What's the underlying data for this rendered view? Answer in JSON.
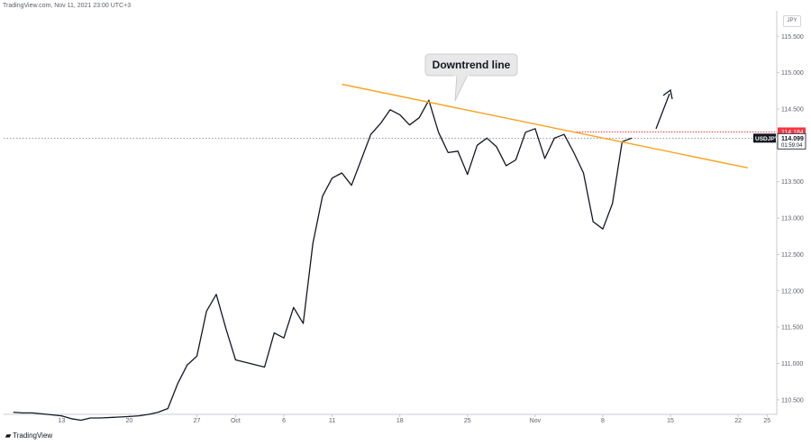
{
  "header": {
    "source": "TradingView.com, Nov 11, 2021 23:00 UTC+3"
  },
  "currency_label": "JPY",
  "logo_text": "TradingView",
  "chart_data": {
    "type": "line",
    "symbol": "USDJPY",
    "y_ticks": [
      "115.500",
      "115.000",
      "114.500",
      "114.000",
      "113.500",
      "113.000",
      "112.500",
      "112.000",
      "111.500",
      "111.000",
      "110.500"
    ],
    "ylim": [
      110.3,
      115.85
    ],
    "x_ticks": [
      {
        "label": "13",
        "date": "2021-09-13"
      },
      {
        "label": "20",
        "date": "2021-09-20"
      },
      {
        "label": "27",
        "date": "2021-09-27"
      },
      {
        "label": "Oct",
        "date": "2021-10-01"
      },
      {
        "label": "6",
        "date": "2021-10-06"
      },
      {
        "label": "11",
        "date": "2021-10-11"
      },
      {
        "label": "18",
        "date": "2021-10-18"
      },
      {
        "label": "25",
        "date": "2021-10-25"
      },
      {
        "label": "Nov",
        "date": "2021-11-01"
      },
      {
        "label": "8",
        "date": "2021-11-08"
      },
      {
        "label": "15",
        "date": "2021-11-15"
      },
      {
        "label": "22",
        "date": "2021-11-22"
      },
      {
        "label": "25",
        "date": "2021-11-25"
      }
    ],
    "xlim": [
      "2021-09-07",
      "2021-11-26"
    ],
    "series": [
      {
        "color": "#131722",
        "x": [
          "2021-09-08",
          "2021-09-09",
          "2021-09-10",
          "2021-09-13",
          "2021-09-14",
          "2021-09-15",
          "2021-09-16",
          "2021-09-17",
          "2021-09-20",
          "2021-09-21",
          "2021-09-22",
          "2021-09-23",
          "2021-09-24",
          "2021-09-25",
          "2021-09-26",
          "2021-09-27",
          "2021-09-28",
          "2021-09-29",
          "2021-09-30",
          "2021-10-01",
          "2021-10-04",
          "2021-10-05",
          "2021-10-06",
          "2021-10-07",
          "2021-10-08",
          "2021-10-09",
          "2021-10-10",
          "2021-10-11",
          "2021-10-12",
          "2021-10-13",
          "2021-10-14",
          "2021-10-15",
          "2021-10-16",
          "2021-10-17",
          "2021-10-18",
          "2021-10-19",
          "2021-10-20",
          "2021-10-21",
          "2021-10-22",
          "2021-10-23",
          "2021-10-24",
          "2021-10-25",
          "2021-10-26",
          "2021-10-27",
          "2021-10-28",
          "2021-10-29",
          "2021-10-30",
          "2021-10-31",
          "2021-11-01",
          "2021-11-02",
          "2021-11-03",
          "2021-11-04",
          "2021-11-05",
          "2021-11-06",
          "2021-11-07",
          "2021-11-08",
          "2021-11-09",
          "2021-11-10",
          "2021-11-11"
        ],
        "y": [
          110.33,
          110.32,
          110.32,
          110.28,
          110.24,
          110.22,
          110.25,
          110.25,
          110.27,
          110.28,
          110.3,
          110.33,
          110.38,
          110.72,
          110.98,
          111.1,
          111.72,
          111.95,
          111.48,
          111.05,
          110.95,
          111.42,
          111.35,
          111.77,
          111.55,
          112.65,
          113.3,
          113.55,
          113.62,
          113.45,
          113.8,
          114.15,
          114.3,
          114.49,
          114.42,
          114.28,
          114.38,
          114.62,
          114.18,
          113.9,
          113.92,
          113.6,
          114.0,
          114.1,
          113.98,
          113.72,
          113.8,
          114.18,
          114.23,
          113.82,
          114.1,
          114.15,
          113.9,
          113.62,
          112.95,
          112.85,
          113.2,
          114.05,
          114.1
        ]
      }
    ],
    "trendline": {
      "color": "#f7a21b",
      "x": [
        "2021-10-12",
        "2021-11-23"
      ],
      "y": [
        114.84,
        113.69
      ]
    },
    "resistance": {
      "color": "#f23645",
      "y": 114.184,
      "label": "114.184"
    },
    "price_tag": {
      "symbol": "USDJPY",
      "price": "114.099",
      "countdown": "01:59:04",
      "y": 114.099
    },
    "annotation": {
      "text": "Downtrend line"
    }
  }
}
